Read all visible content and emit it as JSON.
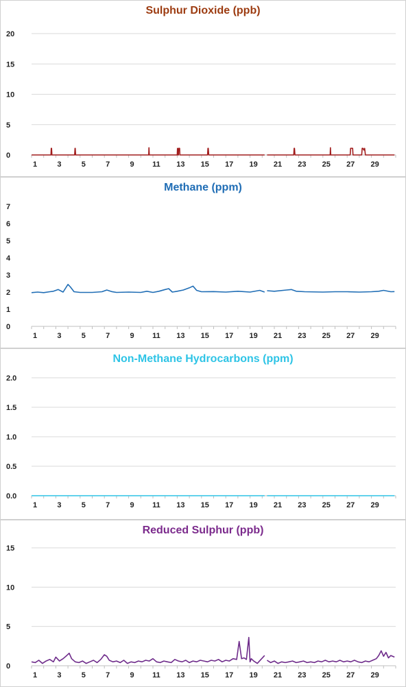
{
  "chart_data": [
    {
      "type": "line",
      "title": "Sulphur Dioxide (ppb)",
      "color": "#a11d1d",
      "ylim": [
        0,
        20
      ],
      "yticks": [
        "0",
        "5",
        "10",
        "15",
        "20"
      ],
      "xlim": [
        1,
        31
      ],
      "xticks": [
        1,
        3,
        5,
        7,
        9,
        11,
        13,
        15,
        17,
        19,
        21,
        23,
        25,
        27,
        29
      ],
      "gap": [
        20.2,
        20.4
      ],
      "grid": true,
      "x": [
        1,
        2.6,
        2.62,
        2.65,
        2.68,
        4.55,
        4.58,
        4.6,
        4.63,
        10.65,
        10.67,
        10.7,
        13.0,
        13.02,
        13.05,
        13.1,
        13.12,
        13.2,
        13.22,
        15.5,
        15.53,
        15.56,
        15.6,
        20.2,
        20.4,
        22.6,
        22.63,
        22.66,
        22.7,
        25.6,
        25.62,
        25.65,
        27.25,
        27.28,
        27.32,
        27.45,
        27.48,
        28.2,
        28.24,
        28.3,
        28.38,
        28.44,
        28.5,
        30.9
      ],
      "y": [
        0,
        0,
        1.1,
        1.1,
        0,
        0,
        1.1,
        1.1,
        0,
        0,
        1.2,
        0,
        0,
        1.1,
        0,
        0,
        1.1,
        1.1,
        0,
        0,
        1.1,
        1.1,
        0,
        0,
        0,
        0,
        1.1,
        1.1,
        0,
        0,
        1.2,
        0,
        0,
        1.1,
        1.1,
        1.1,
        0,
        0,
        1.1,
        1.1,
        0.8,
        1.1,
        0,
        0
      ]
    },
    {
      "type": "line",
      "title": "Methane (ppm)",
      "color": "#1f6db5",
      "ylim": [
        0,
        7
      ],
      "yticks": [
        "0",
        "1",
        "2",
        "3",
        "4",
        "5",
        "6",
        "7"
      ],
      "xlim": [
        1,
        31
      ],
      "xticks": [
        1,
        3,
        5,
        7,
        9,
        11,
        13,
        15,
        17,
        19,
        21,
        23,
        25,
        27,
        29
      ],
      "gap": [
        20.2,
        20.4
      ],
      "grid": false,
      "x": [
        1,
        1.5,
        2,
        2.5,
        2.8,
        3.2,
        3.6,
        4,
        4.2,
        4.5,
        5,
        6,
        6.8,
        7.2,
        7.6,
        8,
        9,
        10,
        10.5,
        11,
        11.5,
        12,
        12.3,
        12.6,
        13,
        13.5,
        14,
        14.3,
        14.6,
        15,
        16,
        17,
        18,
        19,
        19.8,
        20,
        20.2,
        20.4,
        21,
        22,
        22.4,
        22.8,
        23.5,
        25,
        26,
        27,
        28,
        29,
        29.6,
        30,
        30.6,
        30.9
      ],
      "y": [
        1.97,
        2.0,
        1.97,
        2.02,
        2.05,
        2.15,
        2.0,
        2.45,
        2.3,
        2.02,
        1.98,
        1.98,
        2.02,
        2.12,
        2.03,
        1.98,
        2.0,
        1.98,
        2.05,
        1.98,
        2.05,
        2.15,
        2.2,
        2.0,
        2.05,
        2.12,
        2.25,
        2.35,
        2.1,
        2.02,
        2.03,
        2.0,
        2.05,
        2.0,
        2.1,
        2.05,
        2.0,
        2.08,
        2.05,
        2.12,
        2.15,
        2.05,
        2.02,
        2.0,
        2.02,
        2.02,
        2.0,
        2.02,
        2.05,
        2.1,
        2.02,
        2.03
      ]
    },
    {
      "type": "line",
      "title": "Non-Methane Hydrocarbons (ppm)",
      "color": "#2ec4e6",
      "ylim": [
        0,
        2.0
      ],
      "yticks": [
        "0.0",
        "0.5",
        "1.0",
        "1.5",
        "2.0"
      ],
      "xlim": [
        1,
        31
      ],
      "xticks": [
        1,
        3,
        5,
        7,
        9,
        11,
        13,
        15,
        17,
        19,
        21,
        23,
        25,
        27,
        29
      ],
      "gap": [
        20.2,
        20.4
      ],
      "grid": true,
      "x": [
        1,
        20.2,
        20.4,
        30.9
      ],
      "y": [
        0,
        0,
        0,
        0
      ]
    },
    {
      "type": "line",
      "title": "Reduced Sulphur (ppb)",
      "color": "#6e2b8a",
      "ylim": [
        0,
        15
      ],
      "yticks": [
        "0",
        "5",
        "10",
        "15"
      ],
      "xlim": [
        1,
        31
      ],
      "xticks": [
        1,
        3,
        5,
        7,
        9,
        11,
        13,
        15,
        17,
        19,
        21,
        23,
        25,
        27,
        29
      ],
      "gap": [
        20.2,
        20.4
      ],
      "grid": true,
      "x": [
        1,
        1.3,
        1.6,
        1.9,
        2.2,
        2.5,
        2.8,
        3.0,
        3.3,
        3.6,
        3.9,
        4.1,
        4.3,
        4.6,
        4.9,
        5.2,
        5.5,
        5.8,
        6.1,
        6.4,
        6.7,
        7.0,
        7.2,
        7.4,
        7.7,
        8.0,
        8.3,
        8.6,
        8.9,
        9.2,
        9.5,
        9.8,
        10.1,
        10.4,
        10.7,
        11.0,
        11.3,
        11.6,
        11.9,
        12.2,
        12.5,
        12.8,
        13.1,
        13.4,
        13.7,
        14.0,
        14.3,
        14.6,
        14.9,
        15.2,
        15.5,
        15.8,
        16.1,
        16.4,
        16.7,
        17.0,
        17.3,
        17.6,
        17.9,
        18.1,
        18.3,
        18.5,
        18.7,
        18.9,
        19.0,
        19.1,
        19.3,
        19.6,
        19.9,
        20.2,
        20.4,
        20.7,
        21.0,
        21.3,
        21.6,
        21.9,
        22.2,
        22.5,
        22.8,
        23.1,
        23.4,
        23.7,
        24.0,
        24.3,
        24.6,
        24.9,
        25.2,
        25.5,
        25.8,
        26.1,
        26.4,
        26.7,
        27.0,
        27.3,
        27.6,
        27.9,
        28.2,
        28.5,
        28.8,
        29.1,
        29.4,
        29.6,
        29.8,
        30.0,
        30.2,
        30.4,
        30.6,
        30.9
      ],
      "y": [
        0.5,
        0.4,
        0.7,
        0.3,
        0.6,
        0.8,
        0.5,
        1.1,
        0.6,
        0.9,
        1.3,
        1.6,
        0.9,
        0.5,
        0.4,
        0.6,
        0.3,
        0.5,
        0.7,
        0.4,
        0.8,
        1.4,
        1.2,
        0.7,
        0.5,
        0.6,
        0.4,
        0.7,
        0.3,
        0.5,
        0.4,
        0.6,
        0.5,
        0.7,
        0.6,
        0.9,
        0.5,
        0.4,
        0.6,
        0.5,
        0.4,
        0.8,
        0.6,
        0.5,
        0.7,
        0.4,
        0.6,
        0.5,
        0.7,
        0.6,
        0.5,
        0.7,
        0.6,
        0.8,
        0.5,
        0.7,
        0.6,
        0.9,
        0.8,
        3.1,
        0.9,
        1.0,
        0.8,
        3.6,
        0.5,
        0.9,
        0.6,
        0.3,
        0.8,
        1.3,
        0.7,
        0.4,
        0.6,
        0.3,
        0.5,
        0.4,
        0.5,
        0.6,
        0.4,
        0.5,
        0.6,
        0.4,
        0.5,
        0.4,
        0.6,
        0.5,
        0.7,
        0.5,
        0.6,
        0.5,
        0.7,
        0.5,
        0.6,
        0.5,
        0.7,
        0.5,
        0.4,
        0.6,
        0.5,
        0.7,
        0.9,
        1.3,
        1.9,
        1.2,
        1.7,
        1.0,
        1.3,
        1.1
      ]
    }
  ]
}
